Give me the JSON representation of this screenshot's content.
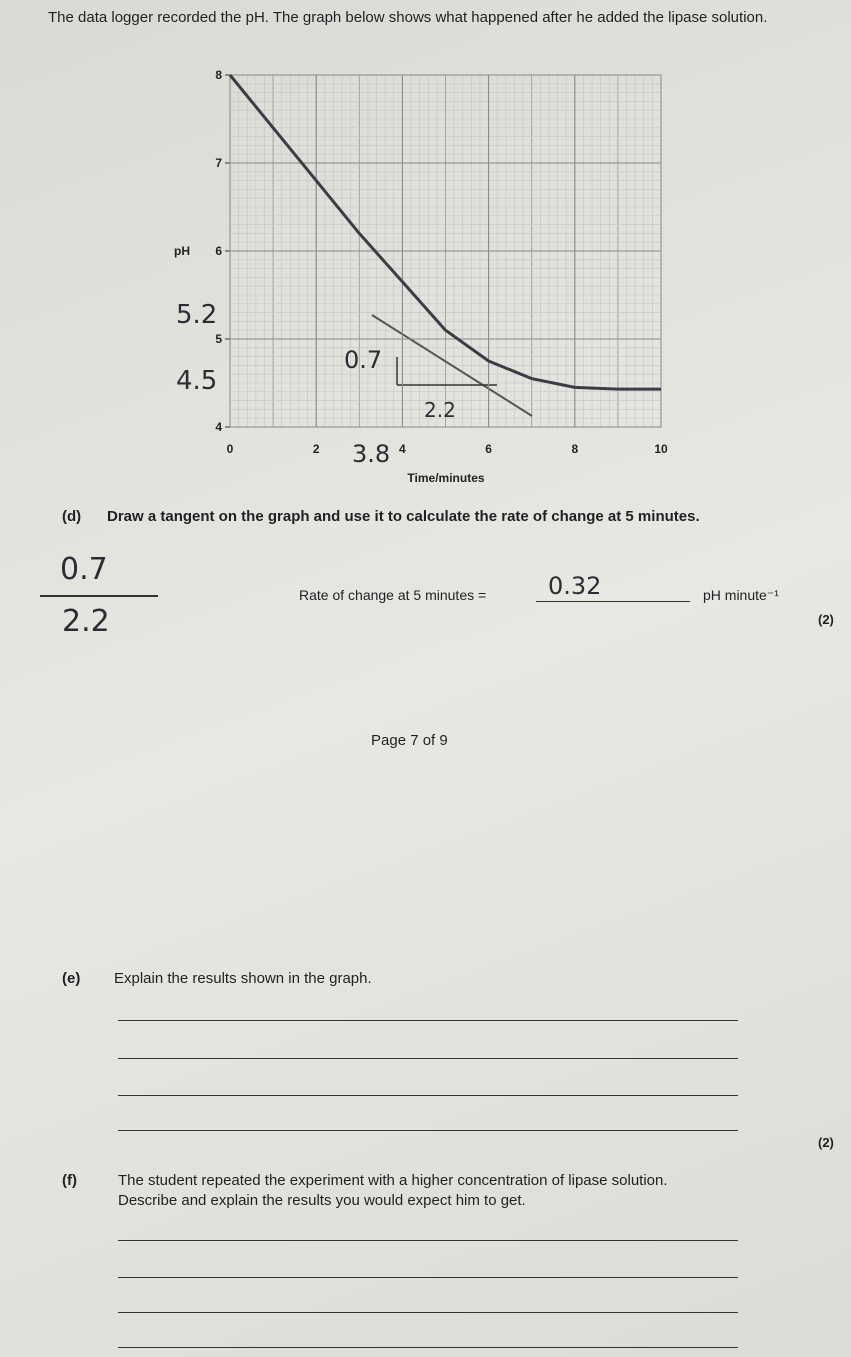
{
  "intro": "The data logger recorded the pH. The graph below shows what happened after he added the lipase solution.",
  "chart_data": {
    "type": "line",
    "y_label": "pH",
    "x_label": "Time/minutes",
    "x": [
      0,
      1,
      2,
      3,
      4,
      5,
      6,
      7,
      8,
      9,
      10
    ],
    "series": [
      {
        "color": "#3a3d44",
        "values": [
          8,
          7.4,
          6.8,
          6.2,
          5.65,
          5.1,
          4.75,
          4.55,
          4.45,
          4.43,
          4.43
        ]
      }
    ],
    "xlim": [
      0,
      10
    ],
    "ylim": [
      4,
      8
    ],
    "xticks": [
      0,
      2,
      4,
      6,
      8,
      10
    ],
    "yticks": [
      4,
      5,
      6,
      7,
      8
    ],
    "grid": true,
    "annotations": [
      "5.2",
      "4.5",
      "0.7",
      "2.2",
      "3.8"
    ]
  },
  "question_d": {
    "label": "(d)",
    "text": "Draw a tangent on the graph and use it to calculate the rate of change at 5 minutes.",
    "working_numerator": "0.7",
    "working_denominator": "2.2",
    "prompt": "Rate of change at 5 minutes =",
    "answer": "0.32",
    "unit": "pH minute⁻¹",
    "marks": "(2)"
  },
  "footer": "Page 7 of 9",
  "question_e": {
    "label": "(e)",
    "text": "Explain the results shown in the graph.",
    "marks": "(2)"
  },
  "question_f": {
    "label": "(f)",
    "lines": [
      "The student repeated the experiment with a higher concentration of lipase solution.",
      "Describe and explain the results you would expect him to get."
    ]
  }
}
